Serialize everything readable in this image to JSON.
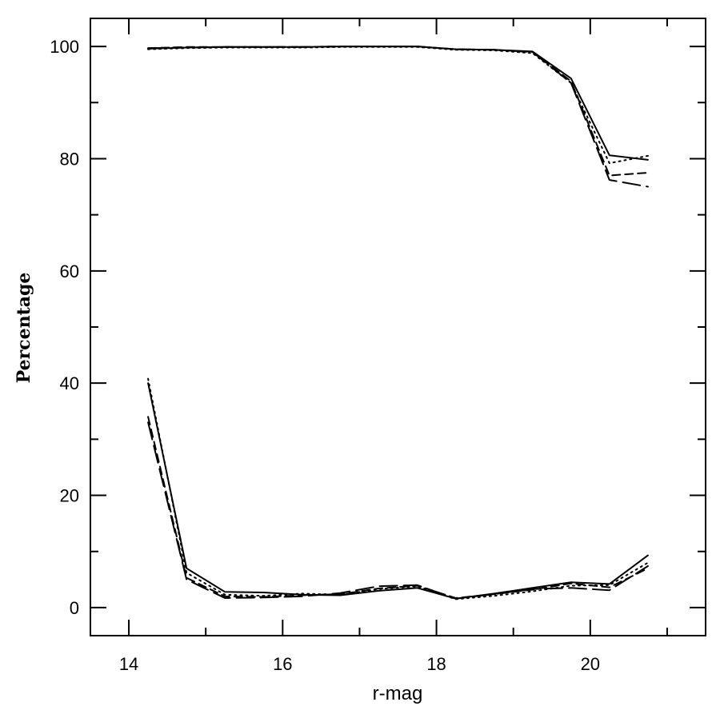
{
  "chart_data": {
    "type": "line",
    "title": "",
    "xlabel": "r-mag",
    "ylabel": "Percentage",
    "xlim": [
      13.5,
      21.5
    ],
    "ylim": [
      -5,
      105
    ],
    "xticks": [
      14,
      16,
      18,
      20
    ],
    "yticks": [
      0,
      20,
      40,
      60,
      80,
      100
    ],
    "x_minor_step": 1,
    "y_minor_step": 10,
    "grid": false,
    "legend": "none",
    "colors": {
      "line": "#000000",
      "axis": "#000000",
      "background": "#ffffff"
    },
    "series": [
      {
        "group": "upper",
        "dash": "solid",
        "x": [
          14.25,
          14.75,
          15.25,
          15.75,
          16.25,
          16.75,
          17.25,
          17.75,
          18.25,
          18.75,
          19.25,
          19.75,
          20.25,
          20.75
        ],
        "values": [
          99.6,
          99.8,
          99.9,
          99.9,
          99.9,
          100.0,
          100.0,
          100.0,
          99.5,
          99.4,
          99.1,
          94.3,
          80.6,
          79.8
        ]
      },
      {
        "group": "upper",
        "dash": "dotted",
        "x": [
          14.25,
          14.75,
          15.25,
          15.75,
          16.25,
          16.75,
          17.25,
          17.75,
          18.25,
          18.75,
          19.25,
          19.75,
          20.25,
          20.75
        ],
        "values": [
          99.5,
          99.7,
          99.8,
          99.8,
          99.8,
          99.9,
          99.9,
          99.9,
          99.4,
          99.3,
          98.8,
          93.5,
          79.2,
          80.5
        ]
      },
      {
        "group": "upper",
        "dash": "dashed",
        "x": [
          14.25,
          14.75,
          15.25,
          15.75,
          16.25,
          16.75,
          17.25,
          17.75,
          18.25,
          18.75,
          19.25,
          19.75,
          20.25,
          20.75
        ],
        "values": [
          99.7,
          99.9,
          99.9,
          99.9,
          99.9,
          100.0,
          100.0,
          100.0,
          99.5,
          99.4,
          99.0,
          93.8,
          77.0,
          77.5
        ]
      },
      {
        "group": "upper",
        "dash": "long-dashed",
        "x": [
          14.25,
          14.75,
          15.25,
          15.75,
          16.25,
          16.75,
          17.25,
          17.75,
          18.25,
          18.75,
          19.25,
          19.75,
          20.25,
          20.75
        ],
        "values": [
          99.7,
          99.8,
          99.9,
          99.9,
          99.9,
          100.0,
          100.0,
          100.0,
          99.5,
          99.4,
          99.0,
          93.5,
          76.2,
          75.0
        ]
      },
      {
        "group": "lower",
        "dash": "solid",
        "x": [
          14.25,
          14.75,
          15.25,
          15.75,
          16.25,
          16.75,
          17.25,
          17.75,
          18.25,
          18.75,
          19.25,
          19.75,
          20.25,
          20.75
        ],
        "values": [
          40.0,
          7.0,
          2.8,
          2.7,
          2.3,
          2.2,
          3.0,
          3.5,
          1.6,
          2.5,
          3.5,
          4.5,
          4.2,
          9.3
        ]
      },
      {
        "group": "lower",
        "dash": "dotted",
        "x": [
          14.25,
          14.75,
          15.25,
          15.75,
          16.25,
          16.75,
          17.25,
          17.75,
          18.25,
          18.75,
          19.25,
          19.75,
          20.25,
          20.75
        ],
        "values": [
          40.8,
          6.2,
          2.3,
          2.1,
          2.5,
          2.3,
          3.3,
          3.8,
          1.5,
          2.1,
          2.9,
          3.9,
          4.0,
          8.0
        ]
      },
      {
        "group": "lower",
        "dash": "dashed",
        "x": [
          14.25,
          14.75,
          15.25,
          15.75,
          16.25,
          16.75,
          17.25,
          17.75,
          18.25,
          18.75,
          19.25,
          19.75,
          20.25,
          20.75
        ],
        "values": [
          34.0,
          5.3,
          2.0,
          1.9,
          2.2,
          2.4,
          3.4,
          3.9,
          1.7,
          2.4,
          3.2,
          4.3,
          3.6,
          7.0
        ]
      },
      {
        "group": "lower",
        "dash": "long-dashed",
        "x": [
          14.25,
          14.75,
          15.25,
          15.75,
          16.25,
          16.75,
          17.25,
          17.75,
          18.25,
          18.75,
          19.25,
          19.75,
          20.25,
          20.75
        ],
        "values": [
          33.0,
          5.0,
          1.7,
          1.8,
          2.0,
          2.6,
          3.8,
          4.0,
          1.6,
          2.4,
          3.3,
          3.5,
          3.1,
          7.4
        ]
      }
    ]
  }
}
